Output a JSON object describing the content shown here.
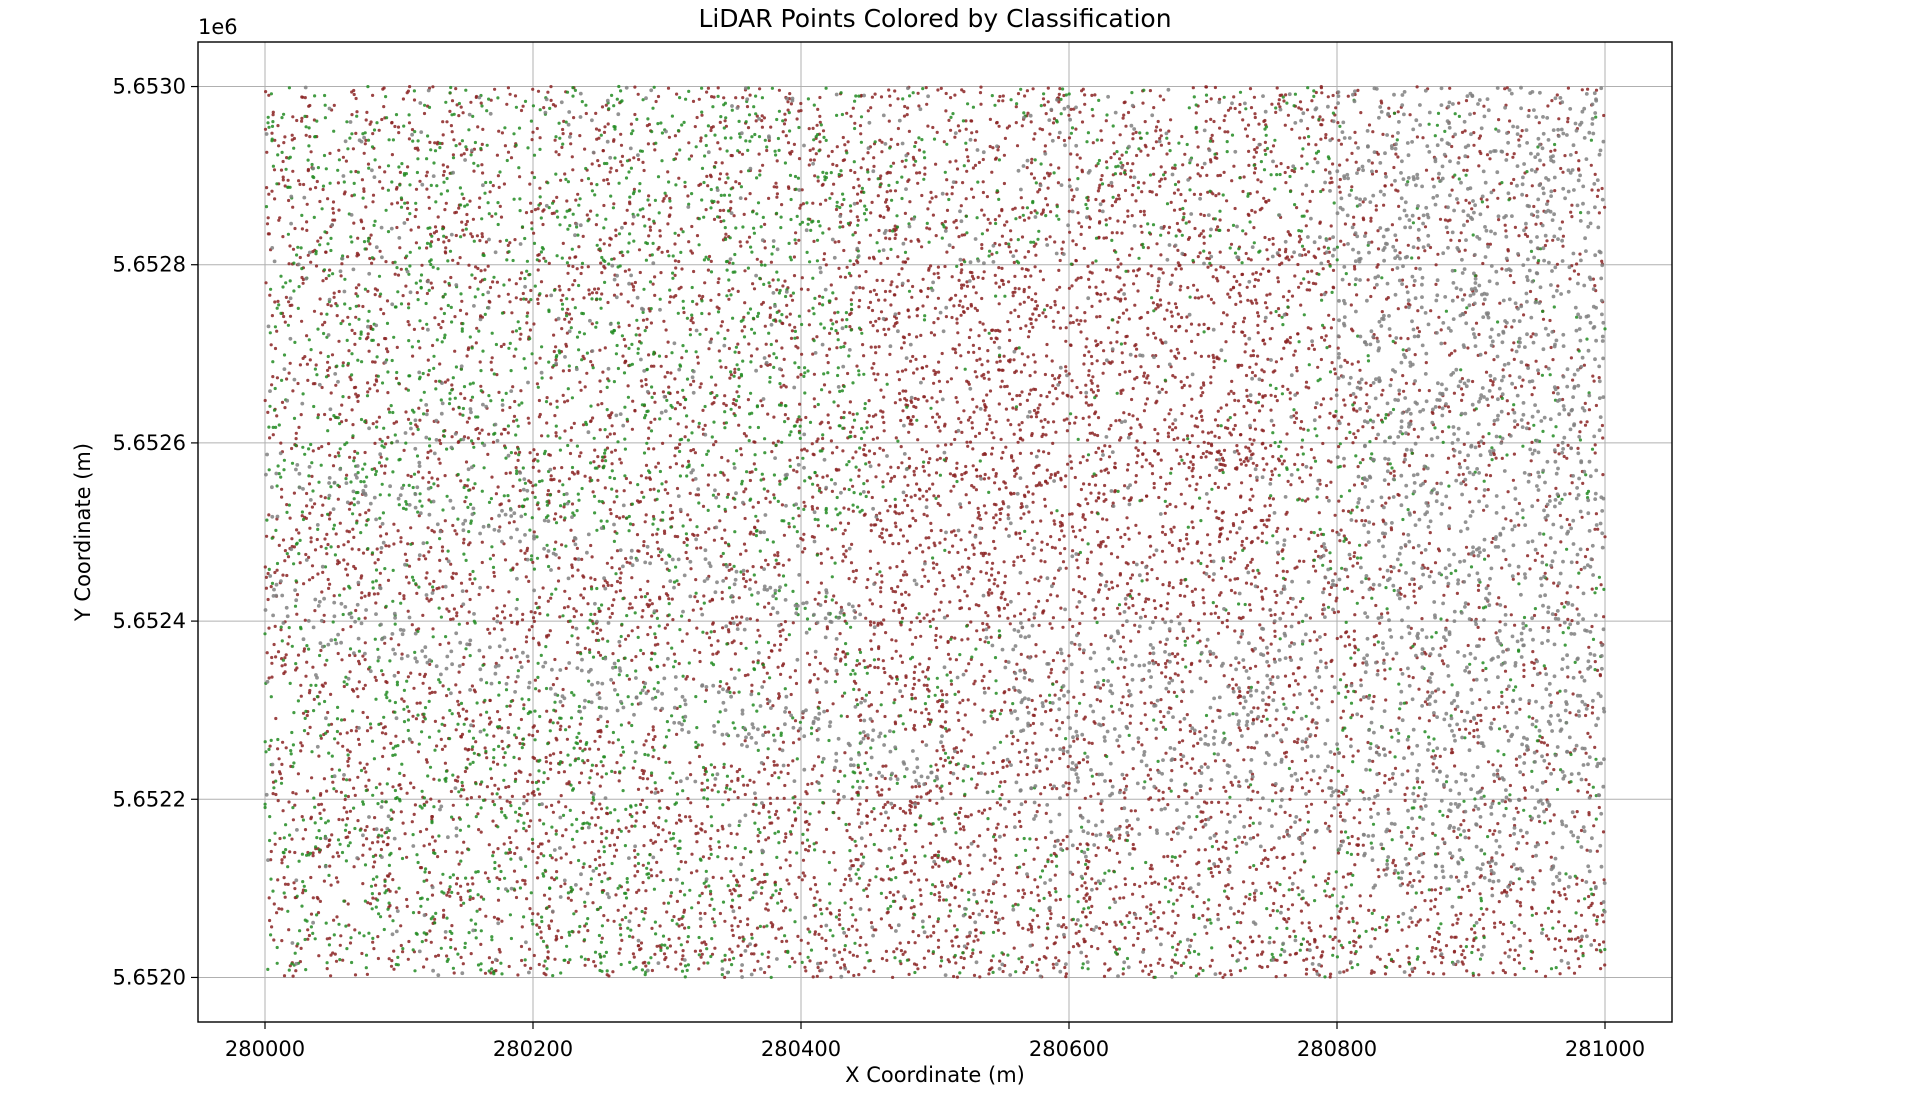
{
  "chart_data": {
    "type": "scatter",
    "title": "LiDAR Points Colored by Classification",
    "xlabel": "X Coordinate (m)",
    "ylabel": "Y Coordinate (m)",
    "y_offset_label": "1e6",
    "xlim": [
      279950,
      281050
    ],
    "ylim": [
      5.65195,
      5.65305
    ],
    "grid": true,
    "x_ticks": [
      {
        "value": 280000,
        "label": "280000"
      },
      {
        "value": 280200,
        "label": "280200"
      },
      {
        "value": 280400,
        "label": "280400"
      },
      {
        "value": 280600,
        "label": "280600"
      },
      {
        "value": 280800,
        "label": "280800"
      },
      {
        "value": 281000,
        "label": "281000"
      }
    ],
    "y_ticks": [
      {
        "value": 5.652,
        "label": "5.6520"
      },
      {
        "value": 5.6522,
        "label": "5.6522"
      },
      {
        "value": 5.6524,
        "label": "5.6524"
      },
      {
        "value": 5.6526,
        "label": "5.6526"
      },
      {
        "value": 5.6528,
        "label": "5.6528"
      },
      {
        "value": 5.653,
        "label": "5.6530"
      }
    ],
    "data_extent": {
      "x": [
        280000,
        281000
      ],
      "y": [
        5.652,
        5.653
      ]
    },
    "series": [
      {
        "color": "#8b2323"
      },
      {
        "color": "#228b22"
      },
      {
        "color": "#808080"
      }
    ]
  }
}
